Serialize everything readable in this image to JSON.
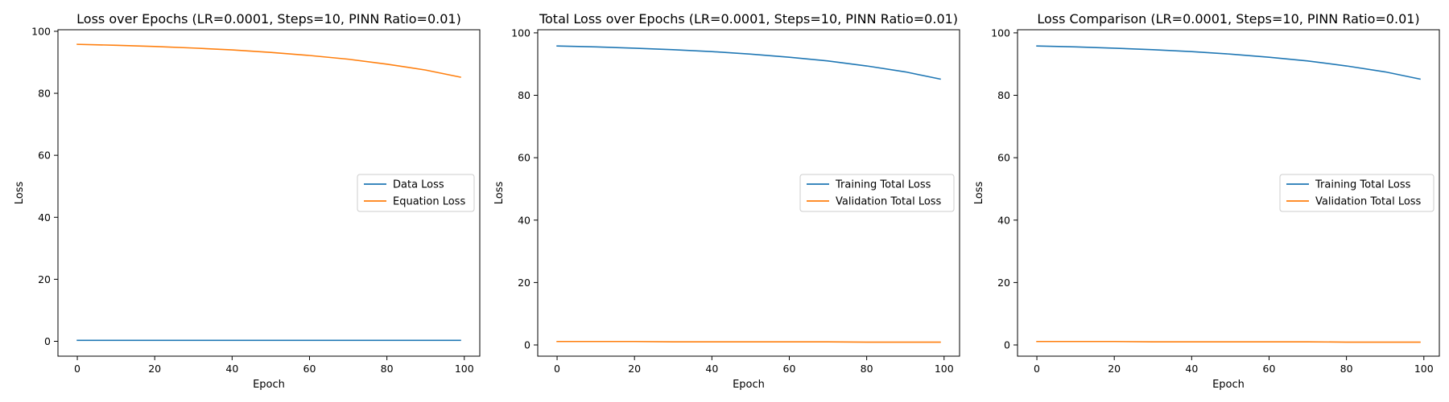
{
  "colors": {
    "blue": "#1f77b4",
    "orange": "#ff7f0e"
  },
  "chart_data": [
    {
      "type": "line",
      "title": "Loss over Epochs (LR=0.0001, Steps=10, PINN Ratio=0.01)",
      "xlabel": "Epoch",
      "ylabel": "Loss",
      "xlim": [
        -5,
        104
      ],
      "ylim": [
        -4.8,
        100.5
      ],
      "xticks": [
        0,
        20,
        40,
        60,
        80,
        100
      ],
      "yticks": [
        0,
        20,
        40,
        60,
        80,
        100
      ],
      "legend_position": "center-right",
      "grid": false,
      "series": [
        {
          "name": "Data Loss",
          "color": "#1f77b4",
          "x": [
            0,
            10,
            20,
            30,
            40,
            50,
            60,
            70,
            80,
            90,
            99
          ],
          "y": [
            0.3,
            0.3,
            0.3,
            0.3,
            0.3,
            0.3,
            0.3,
            0.3,
            0.3,
            0.3,
            0.3
          ]
        },
        {
          "name": "Equation Loss",
          "color": "#ff7f0e",
          "x": [
            0,
            10,
            20,
            30,
            40,
            50,
            60,
            70,
            80,
            90,
            99
          ],
          "y": [
            95.8,
            95.5,
            95.1,
            94.6,
            94.0,
            93.2,
            92.2,
            91.0,
            89.4,
            87.5,
            85.2
          ]
        }
      ]
    },
    {
      "type": "line",
      "title": "Total Loss over Epochs (LR=0.0001, Steps=10, PINN Ratio=0.01)",
      "xlabel": "Epoch",
      "ylabel": "Loss",
      "xlim": [
        -5,
        104
      ],
      "ylim": [
        -3.6,
        101
      ],
      "xticks": [
        0,
        20,
        40,
        60,
        80,
        100
      ],
      "yticks": [
        0,
        20,
        40,
        60,
        80,
        100
      ],
      "legend_position": "center-right",
      "grid": false,
      "series": [
        {
          "name": "Training Total Loss",
          "color": "#1f77b4",
          "x": [
            0,
            10,
            20,
            30,
            40,
            50,
            60,
            70,
            80,
            90,
            99
          ],
          "y": [
            95.8,
            95.5,
            95.1,
            94.6,
            94.0,
            93.2,
            92.2,
            91.0,
            89.4,
            87.5,
            85.2
          ]
        },
        {
          "name": "Validation Total Loss",
          "color": "#ff7f0e",
          "x": [
            0,
            10,
            20,
            30,
            40,
            50,
            60,
            70,
            80,
            90,
            99
          ],
          "y": [
            1.1,
            1.1,
            1.1,
            1.0,
            1.0,
            1.0,
            1.0,
            1.0,
            0.9,
            0.9,
            0.9
          ]
        }
      ]
    },
    {
      "type": "line",
      "title": "Loss Comparison (LR=0.0001, Steps=10, PINN Ratio=0.01)",
      "xlabel": "Epoch",
      "ylabel": "Loss",
      "xlim": [
        -5,
        104
      ],
      "ylim": [
        -3.6,
        101
      ],
      "xticks": [
        0,
        20,
        40,
        60,
        80,
        100
      ],
      "yticks": [
        0,
        20,
        40,
        60,
        80,
        100
      ],
      "legend_position": "center-right",
      "grid": false,
      "series": [
        {
          "name": "Training Total Loss",
          "color": "#1f77b4",
          "x": [
            0,
            10,
            20,
            30,
            40,
            50,
            60,
            70,
            80,
            90,
            99
          ],
          "y": [
            95.8,
            95.5,
            95.1,
            94.6,
            94.0,
            93.2,
            92.2,
            91.0,
            89.4,
            87.5,
            85.2
          ]
        },
        {
          "name": "Validation Total Loss",
          "color": "#ff7f0e",
          "x": [
            0,
            10,
            20,
            30,
            40,
            50,
            60,
            70,
            80,
            90,
            99
          ],
          "y": [
            1.1,
            1.1,
            1.1,
            1.0,
            1.0,
            1.0,
            1.0,
            1.0,
            0.9,
            0.9,
            0.9
          ]
        }
      ]
    }
  ]
}
